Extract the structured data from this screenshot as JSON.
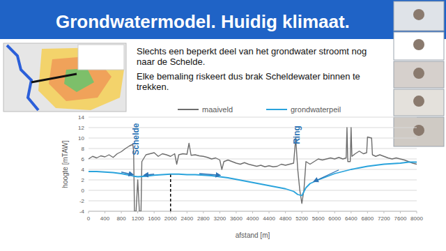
{
  "slide": {
    "title": "Grondwatermodel. Huidig klimaat.",
    "paragraphs": [
      [
        "Slechts een beperkt deel van het grondwater stroomt nog",
        "naar de Schelde."
      ],
      [
        "Elke bemaling riskeert dus brak Scheldewater binnen te",
        "trekken."
      ]
    ]
  },
  "chart_data": {
    "type": "line",
    "x_label": "afstand [m]",
    "y_label": "hoogte [mTAW]",
    "xlim": [
      0,
      8000
    ],
    "ylim": [
      -4,
      14
    ],
    "xticks": [
      0,
      400,
      800,
      1200,
      1600,
      2000,
      2400,
      2800,
      3200,
      3600,
      4000,
      4400,
      4800,
      5200,
      5600,
      6000,
      6400,
      6800,
      7200,
      7600,
      8000
    ],
    "yticks": [
      -4,
      -2,
      0,
      2,
      4,
      6,
      8,
      10,
      12,
      14
    ],
    "grid": true,
    "legend": "top",
    "series": [
      {
        "name": "maaiveld",
        "color": "#6d6d6d",
        "x": [
          0,
          100,
          200,
          300,
          400,
          500,
          600,
          700,
          800,
          900,
          1000,
          1080,
          1100,
          1120,
          1160,
          1200,
          1240,
          1280,
          1300,
          1400,
          1500,
          1600,
          1700,
          1800,
          1900,
          2000,
          2100,
          2150,
          2200,
          2300,
          2400,
          2450,
          2500,
          2600,
          2700,
          2800,
          2900,
          3000,
          3100,
          3200,
          3250,
          3300,
          3400,
          3500,
          3600,
          3700,
          3800,
          3900,
          4000,
          4100,
          4200,
          4300,
          4400,
          4500,
          4600,
          4700,
          4800,
          4900,
          5000,
          5050,
          5100,
          5150,
          5200,
          5250,
          5300,
          5400,
          5500,
          5600,
          5700,
          5800,
          5900,
          6000,
          6100,
          6200,
          6280,
          6300,
          6320,
          6380,
          6400,
          6420,
          6500,
          6600,
          6700,
          6780,
          6800,
          6900,
          6920,
          7000,
          7100,
          7200,
          7300,
          7400,
          7500,
          7600,
          7700,
          7800,
          7900,
          8000
        ],
        "values": [
          6.0,
          6.5,
          6.2,
          6.6,
          6.4,
          6.8,
          6.3,
          7.0,
          7.4,
          8.0,
          8.5,
          8.8,
          7.5,
          -4.0,
          -4.0,
          2.0,
          -4.0,
          -4.0,
          5.5,
          6.8,
          7.0,
          7.2,
          6.5,
          7.0,
          6.8,
          6.5,
          7.0,
          5.0,
          6.8,
          7.0,
          6.9,
          9.0,
          6.7,
          6.8,
          6.6,
          6.5,
          6.3,
          6.0,
          6.2,
          5.8,
          4.0,
          5.5,
          5.8,
          5.5,
          5.2,
          5.0,
          5.3,
          5.0,
          4.8,
          4.6,
          4.8,
          4.5,
          4.7,
          4.5,
          4.6,
          5.0,
          4.8,
          5.0,
          5.2,
          10.0,
          4.0,
          0.0,
          -2.5,
          0.0,
          5.5,
          5.0,
          5.5,
          6.0,
          5.8,
          6.0,
          6.2,
          6.0,
          6.3,
          6.0,
          6.2,
          12.0,
          5.5,
          5.5,
          12.0,
          6.5,
          7.0,
          7.5,
          7.0,
          7.2,
          10.2,
          10.0,
          6.8,
          6.5,
          6.8,
          6.5,
          6.2,
          6.0,
          6.2,
          6.0,
          5.8,
          5.5,
          5.2,
          5.0
        ]
      },
      {
        "name": "grondwaterpeil",
        "color": "#29a3dc",
        "x": [
          0,
          200,
          400,
          600,
          800,
          1000,
          1100,
          1200,
          1400,
          1600,
          1800,
          2000,
          2200,
          2400,
          2600,
          2800,
          3000,
          3200,
          3400,
          3600,
          3800,
          4000,
          4200,
          4400,
          4600,
          4800,
          5000,
          5100,
          5200,
          5300,
          5400,
          5600,
          5800,
          6000,
          6200,
          6400,
          6600,
          6800,
          7000,
          7200,
          7400,
          7600,
          7800,
          8000
        ],
        "values": [
          3.6,
          3.6,
          3.5,
          3.4,
          3.2,
          2.9,
          2.7,
          2.6,
          2.7,
          2.9,
          3.0,
          3.1,
          3.1,
          3.0,
          3.0,
          2.9,
          2.8,
          2.6,
          2.4,
          2.1,
          1.8,
          1.5,
          1.2,
          0.9,
          0.6,
          0.3,
          -0.2,
          -0.8,
          -1.0,
          0.5,
          1.3,
          2.0,
          2.6,
          3.2,
          3.6,
          4.0,
          4.3,
          4.6,
          4.8,
          5.0,
          5.1,
          5.2,
          5.4,
          5.4
        ]
      }
    ],
    "annotations": [
      {
        "text": "Schelde",
        "x": 1230,
        "y": 9.8,
        "color": "#2e75b6"
      },
      {
        "text": "Ring",
        "x": 5150,
        "y": 10.6,
        "color": "#2e75b6"
      }
    ],
    "arrows": [
      {
        "x": [
          800,
          1080
        ],
        "y": [
          3.5,
          3.0
        ]
      },
      {
        "x": [
          1600,
          1360
        ],
        "y": [
          3.1,
          2.9
        ]
      },
      {
        "x": [
          2700,
          3200
        ],
        "y": [
          3.2,
          2.9
        ]
      },
      {
        "x": [
          6100,
          5500
        ],
        "y": [
          3.9,
          1.7
        ]
      }
    ],
    "vlines": [
      {
        "x": 2000,
        "y": [
          -4,
          3
        ],
        "line_style": "dashed"
      }
    ]
  }
}
